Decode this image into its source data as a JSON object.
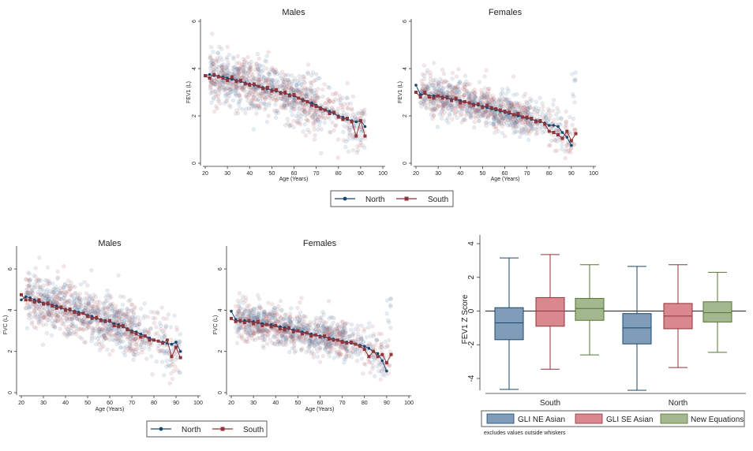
{
  "colors": {
    "north": "#1a476f",
    "south": "#90353b",
    "north_scatter": "#6f8fb0",
    "south_scatter": "#b07076",
    "box_gli_ne": "#7f9cb8",
    "box_gli_se": "#d9888e",
    "box_new_eq": "#a3b88f",
    "box_line_gli_ne": "#1a476f",
    "box_line_gli_se": "#90353b",
    "box_line_new_eq": "#55752f"
  },
  "legend_lines": {
    "north": "North",
    "south": "South"
  },
  "legend_boxes": {
    "gli_ne": "GLI NE Asian",
    "gli_se": "GLI SE Asian",
    "new_eq": "New Equations"
  },
  "box_note": "excludes values outside whiskers",
  "chart_data": [
    {
      "type": "scatter",
      "title": "Males",
      "xlabel": "Age (Years)",
      "ylabel": "FEV1 (L)",
      "xlim": [
        20,
        100
      ],
      "ylim": [
        0,
        6
      ],
      "x_ticks": [
        "20",
        "30",
        "40",
        "50",
        "60",
        "70",
        "80",
        "90",
        "100"
      ],
      "y_ticks": [
        "0",
        "2",
        "4",
        "6"
      ],
      "series": [
        {
          "name": "North",
          "x": [
            20,
            22,
            24,
            26,
            28,
            30,
            32,
            34,
            36,
            38,
            40,
            42,
            44,
            46,
            48,
            50,
            52,
            54,
            56,
            58,
            60,
            62,
            64,
            66,
            68,
            70,
            72,
            74,
            76,
            78,
            80,
            82,
            84,
            86,
            88,
            90,
            92
          ],
          "y": [
            3.7,
            3.75,
            3.7,
            3.68,
            3.65,
            3.6,
            3.55,
            3.5,
            3.45,
            3.4,
            3.35,
            3.3,
            3.25,
            3.2,
            3.15,
            3.1,
            3.05,
            3.0,
            2.95,
            2.9,
            2.85,
            2.75,
            2.7,
            2.6,
            2.55,
            2.45,
            2.35,
            2.25,
            2.2,
            2.1,
            2.0,
            1.95,
            1.85,
            1.8,
            1.75,
            1.8,
            1.55
          ]
        },
        {
          "name": "South",
          "x": [
            20,
            22,
            24,
            26,
            28,
            30,
            32,
            34,
            36,
            38,
            40,
            42,
            44,
            46,
            48,
            50,
            52,
            54,
            56,
            58,
            60,
            62,
            64,
            66,
            68,
            70,
            72,
            74,
            76,
            78,
            80,
            82,
            84,
            86,
            88,
            90,
            92
          ],
          "y": [
            3.7,
            3.6,
            3.75,
            3.65,
            3.6,
            3.5,
            3.65,
            3.45,
            3.5,
            3.35,
            3.3,
            3.35,
            3.25,
            3.15,
            3.2,
            3.05,
            3.1,
            2.95,
            3.0,
            2.85,
            2.9,
            2.75,
            2.65,
            2.6,
            2.45,
            2.4,
            2.3,
            2.25,
            2.1,
            2.15,
            1.95,
            1.85,
            1.9,
            1.75,
            1.15,
            1.8,
            1.15
          ]
        }
      ]
    },
    {
      "type": "scatter",
      "title": "Females",
      "xlabel": "Age (Years)",
      "ylabel": "FEV1 (L)",
      "xlim": [
        20,
        100
      ],
      "ylim": [
        0,
        6
      ],
      "x_ticks": [
        "20",
        "30",
        "40",
        "50",
        "60",
        "70",
        "80",
        "90",
        "100"
      ],
      "y_ticks": [
        "0",
        "2",
        "4",
        "6"
      ],
      "series": [
        {
          "name": "North",
          "x": [
            20,
            22,
            24,
            26,
            28,
            30,
            32,
            34,
            36,
            38,
            40,
            42,
            44,
            46,
            48,
            50,
            52,
            54,
            56,
            58,
            60,
            62,
            64,
            66,
            68,
            70,
            72,
            74,
            76,
            78,
            80,
            82,
            84,
            86,
            88,
            90
          ],
          "y": [
            3.3,
            2.9,
            2.95,
            2.85,
            2.85,
            2.85,
            2.8,
            2.75,
            2.7,
            2.7,
            2.65,
            2.6,
            2.55,
            2.5,
            2.45,
            2.4,
            2.35,
            2.3,
            2.25,
            2.2,
            2.15,
            2.1,
            2.05,
            2.0,
            1.95,
            1.9,
            1.85,
            1.8,
            1.75,
            1.7,
            1.6,
            1.6,
            1.55,
            1.3,
            1.1,
            0.75
          ]
        },
        {
          "name": "South",
          "x": [
            20,
            22,
            24,
            26,
            28,
            30,
            32,
            34,
            36,
            38,
            40,
            42,
            44,
            46,
            48,
            50,
            52,
            54,
            56,
            58,
            60,
            62,
            64,
            66,
            68,
            70,
            72,
            74,
            76,
            78,
            80,
            82,
            84,
            86,
            88,
            90,
            92
          ],
          "y": [
            3.0,
            2.8,
            3.0,
            2.8,
            2.75,
            2.85,
            2.75,
            2.8,
            2.65,
            2.75,
            2.55,
            2.6,
            2.55,
            2.45,
            2.5,
            2.35,
            2.45,
            2.35,
            2.3,
            2.25,
            2.2,
            2.15,
            2.05,
            2.1,
            1.95,
            1.95,
            1.9,
            1.75,
            1.8,
            1.65,
            1.35,
            1.3,
            1.2,
            1.05,
            1.35,
            0.95,
            1.25
          ]
        }
      ]
    },
    {
      "type": "scatter",
      "title": "Males",
      "xlabel": "Age (Years)",
      "ylabel": "FVC (L)",
      "xlim": [
        20,
        100
      ],
      "ylim": [
        0,
        7
      ],
      "x_ticks": [
        "20",
        "30",
        "40",
        "50",
        "60",
        "70",
        "80",
        "90",
        "100"
      ],
      "y_ticks": [
        "0",
        "2",
        "4",
        "6"
      ],
      "series": [
        {
          "name": "North",
          "x": [
            20,
            22,
            24,
            26,
            28,
            30,
            32,
            34,
            36,
            38,
            40,
            42,
            44,
            46,
            48,
            50,
            52,
            54,
            56,
            58,
            60,
            62,
            64,
            66,
            68,
            70,
            72,
            74,
            76,
            78,
            80,
            82,
            84,
            86,
            88,
            90,
            92
          ],
          "y": [
            4.5,
            4.65,
            4.6,
            4.5,
            4.4,
            4.35,
            4.3,
            4.25,
            4.2,
            4.1,
            4.05,
            4.0,
            3.95,
            3.9,
            3.85,
            3.75,
            3.7,
            3.6,
            3.55,
            3.5,
            3.45,
            3.35,
            3.3,
            3.2,
            3.1,
            3.0,
            2.95,
            2.85,
            2.75,
            2.65,
            2.55,
            2.5,
            2.45,
            2.4,
            2.35,
            2.45,
            2.0
          ]
        },
        {
          "name": "South",
          "x": [
            20,
            22,
            24,
            26,
            28,
            30,
            32,
            34,
            36,
            38,
            40,
            42,
            44,
            46,
            48,
            50,
            52,
            54,
            56,
            58,
            60,
            62,
            64,
            66,
            68,
            70,
            72,
            74,
            76,
            78,
            80,
            82,
            84,
            86,
            88,
            90,
            92
          ],
          "y": [
            4.75,
            4.5,
            4.5,
            4.4,
            4.5,
            4.3,
            4.35,
            4.2,
            4.1,
            4.15,
            4.0,
            4.05,
            3.9,
            3.8,
            3.85,
            3.7,
            3.6,
            3.65,
            3.5,
            3.45,
            3.5,
            3.25,
            3.2,
            3.25,
            3.05,
            2.95,
            2.85,
            2.7,
            2.75,
            2.55,
            2.55,
            2.5,
            2.4,
            2.55,
            1.75,
            2.2,
            1.7
          ]
        }
      ]
    },
    {
      "type": "scatter",
      "title": "Females",
      "xlabel": "Age (Years)",
      "ylabel": "FVC (L)",
      "xlim": [
        20,
        100
      ],
      "ylim": [
        0,
        7
      ],
      "x_ticks": [
        "20",
        "30",
        "40",
        "50",
        "60",
        "70",
        "80",
        "90",
        "100"
      ],
      "y_ticks": [
        "0",
        "2",
        "4",
        "6"
      ],
      "series": [
        {
          "name": "North",
          "x": [
            20,
            22,
            24,
            26,
            28,
            30,
            32,
            34,
            36,
            38,
            40,
            42,
            44,
            46,
            48,
            50,
            52,
            54,
            56,
            58,
            60,
            62,
            64,
            66,
            68,
            70,
            72,
            74,
            76,
            78,
            80,
            82,
            84,
            86,
            88,
            90
          ],
          "y": [
            3.95,
            3.55,
            3.45,
            3.5,
            3.45,
            3.45,
            3.4,
            3.35,
            3.3,
            3.3,
            3.25,
            3.2,
            3.15,
            3.1,
            3.05,
            3.0,
            2.95,
            2.9,
            2.85,
            2.8,
            2.75,
            2.7,
            2.65,
            2.6,
            2.55,
            2.5,
            2.45,
            2.4,
            2.35,
            2.3,
            2.25,
            2.15,
            2.0,
            1.9,
            1.55,
            1.05
          ]
        },
        {
          "name": "South",
          "x": [
            20,
            22,
            24,
            26,
            28,
            30,
            32,
            34,
            36,
            38,
            40,
            42,
            44,
            46,
            48,
            50,
            52,
            54,
            56,
            58,
            60,
            62,
            64,
            66,
            68,
            70,
            72,
            74,
            76,
            78,
            80,
            82,
            84,
            86,
            88,
            90,
            92
          ],
          "y": [
            3.6,
            3.45,
            3.5,
            3.4,
            3.5,
            3.35,
            3.45,
            3.25,
            3.3,
            3.2,
            3.25,
            3.1,
            3.05,
            3.15,
            2.95,
            3.0,
            2.85,
            2.9,
            2.75,
            2.8,
            2.7,
            2.75,
            2.6,
            2.55,
            2.55,
            2.45,
            2.4,
            2.45,
            2.35,
            2.25,
            2.1,
            1.75,
            2.0,
            1.75,
            1.85,
            1.45,
            1.85
          ]
        }
      ]
    },
    {
      "type": "box",
      "ylabel": "FEV1 Z Score",
      "ylim": [
        -5,
        4.2
      ],
      "y_ticks": [
        "4",
        "2",
        "0",
        "-2",
        "-4"
      ],
      "groups": [
        "South",
        "North"
      ],
      "series": [
        {
          "name": "GLI NE Asian",
          "boxes": [
            {
              "group": "South",
              "whisker_low": -4.65,
              "q1": -1.7,
              "median": -0.7,
              "q3": 0.2,
              "whisker_high": 3.15
            },
            {
              "group": "North",
              "whisker_low": -4.7,
              "q1": -1.95,
              "median": -1.0,
              "q3": -0.15,
              "whisker_high": 2.65
            }
          ]
        },
        {
          "name": "GLI SE Asian",
          "boxes": [
            {
              "group": "South",
              "whisker_low": -3.45,
              "q1": -0.9,
              "median": 0.0,
              "q3": 0.8,
              "whisker_high": 3.35
            },
            {
              "group": "North",
              "whisker_low": -3.35,
              "q1": -1.05,
              "median": -0.3,
              "q3": 0.45,
              "whisker_high": 2.75
            }
          ]
        },
        {
          "name": "New Equations",
          "boxes": [
            {
              "group": "South",
              "whisker_low": -2.6,
              "q1": -0.55,
              "median": 0.15,
              "q3": 0.75,
              "whisker_high": 2.75
            },
            {
              "group": "North",
              "whisker_low": -2.45,
              "q1": -0.65,
              "median": -0.1,
              "q3": 0.55,
              "whisker_high": 2.3
            }
          ]
        }
      ],
      "reference_line": 0
    }
  ]
}
